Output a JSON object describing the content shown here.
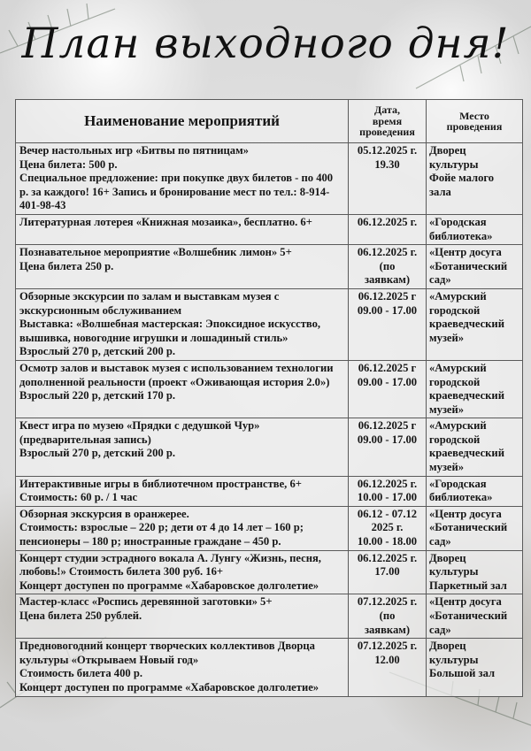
{
  "title": "План выходного дня!",
  "table": {
    "headers": [
      "Наименование мероприятий",
      "Дата,\nвремя\nпроведения",
      "Место\nпроведения"
    ],
    "rows": [
      {
        "name": "Вечер настольных игр «Битвы по пятницам»\nЦена билета: 500 р.\nСпециальное предложение: при покупке двух билетов - по 400 р. за каждого!  16+ Запись и бронирование мест по тел.: 8-914-401-98-43",
        "date": "05.12.2025 г.\n19.30",
        "place": "Дворец\nкультуры\nФойе малого\nзала"
      },
      {
        "name": "Литературная лотерея «Книжная мозаика», бесплатно. 6+",
        "date": "06.12.2025 г.",
        "place": "«Городская\nбиблиотека»"
      },
      {
        "name": "Познавательное мероприятие «Волшебник лимон» 5+\nЦена билета 250 р.",
        "date": "06.12.2025 г.\n(по\nзаявкам)",
        "place": "«Центр досуга\n«Ботанический\nсад»"
      },
      {
        "name": "Обзорные экскурсии по залам и выставкам музея с экскурсионным обслуживанием\nВыставка: «Волшебная мастерская: Эпоксидное искусство, вышивка, новогодние игрушки и лошадиный стиль»\nВзрослый 270 р, детский 200 р.",
        "date": "06.12.2025 г\n09.00 - 17.00",
        "place": "«Амурский\nгородской\nкраеведческий\nмузей»"
      },
      {
        "name": "Осмотр залов и выставок музея с использованием технологии дополненной реальности (проект «Оживающая история 2.0»)\nВзрослый 220 р, детский 170 р.",
        "date": "06.12.2025 г\n09.00 - 17.00",
        "place": "«Амурский\nгородской\nкраеведческий\nмузей»"
      },
      {
        "name": "Квест игра по музею «Прядки с дедушкой Чур»\n(предварительная запись)\nВзрослый 270 р, детский 200 р.",
        "date": "06.12.2025 г\n09.00 - 17.00",
        "place": "«Амурский\nгородской\nкраеведческий\nмузей»"
      },
      {
        "name": "Интерактивные игры в библиотечном пространстве, 6+\nСтоимость: 60 р. / 1 час",
        "date": "06.12.2025 г.\n10.00 - 17.00",
        "place": "«Городская\nбиблиотека»"
      },
      {
        "name": "Обзорная экскурсия в оранжерее.\nСтоимость: взрослые – 220 р; дети от 4 до 14 лет – 160 р; пенсионеры – 180 р; иностранные граждане – 450 р.",
        "date": "06.12 - 07.12\n2025 г.\n10.00 - 18.00",
        "place": "«Центр досуга\n«Ботанический\nсад»"
      },
      {
        "name": "Концерт студии эстрадного вокала А. Лунгу «Жизнь, песня, любовь!» Стоимость билета 300 руб. 16+\nКонцерт доступен по программе «Хабаровское долголетие»",
        "date": "06.12.2025 г.\n17.00",
        "place": "Дворец\nкультуры\nПаркетный зал"
      },
      {
        "name": "Мастер-класс «Роспись деревянной заготовки» 5+\nЦена билета 250 рублей.",
        "date": "07.12.2025 г.\n(по\nзаявкам)",
        "place": "«Центр досуга\n«Ботанический\nсад»"
      },
      {
        "name": "Предновогодний концерт творческих коллективов Дворца культуры «Открываем Новый год»\nСтоимость билета 400 р.\nКонцерт доступен по программе «Хабаровское долголетие»",
        "date": "07.12.2025 г.\n12.00",
        "place": "Дворец\nкультуры\nБольшой зал"
      }
    ]
  }
}
